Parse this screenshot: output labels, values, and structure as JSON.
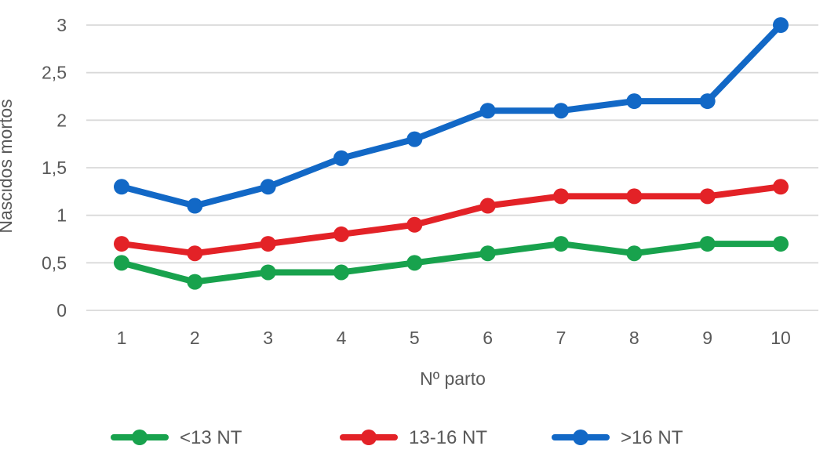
{
  "chart_data": {
    "type": "line",
    "title": "",
    "xlabel": "Nº parto",
    "ylabel": "Nascidos mortos",
    "categories": [
      "1",
      "2",
      "3",
      "4",
      "5",
      "6",
      "7",
      "8",
      "9",
      "10"
    ],
    "series": [
      {
        "name": "<13 NT",
        "color": "#18A24D",
        "values": [
          0.5,
          0.3,
          0.4,
          0.4,
          0.5,
          0.6,
          0.7,
          0.6,
          0.7,
          0.7
        ]
      },
      {
        "name": "13-16 NT",
        "color": "#E32227",
        "values": [
          0.7,
          0.6,
          0.7,
          0.8,
          0.9,
          1.1,
          1.2,
          1.2,
          1.2,
          1.3
        ]
      },
      {
        "name": ">16 NT",
        "color": "#1268C6",
        "values": [
          1.3,
          1.1,
          1.3,
          1.6,
          1.8,
          2.1,
          2.1,
          2.2,
          2.2,
          3.0
        ]
      }
    ],
    "ylim": [
      0,
      3
    ],
    "yticks": [
      {
        "value": 0,
        "label": "0"
      },
      {
        "value": 0.5,
        "label": "0,5"
      },
      {
        "value": 1,
        "label": "1"
      },
      {
        "value": 1.5,
        "label": "1,5"
      },
      {
        "value": 2,
        "label": "2"
      },
      {
        "value": 2.5,
        "label": "2,5"
      },
      {
        "value": 3,
        "label": "3"
      }
    ],
    "grid": "horizontal",
    "legend_position": "bottom",
    "colors": {
      "text": "#595959",
      "gridline": "#D9D9D9",
      "background": "#FFFFFF"
    }
  }
}
